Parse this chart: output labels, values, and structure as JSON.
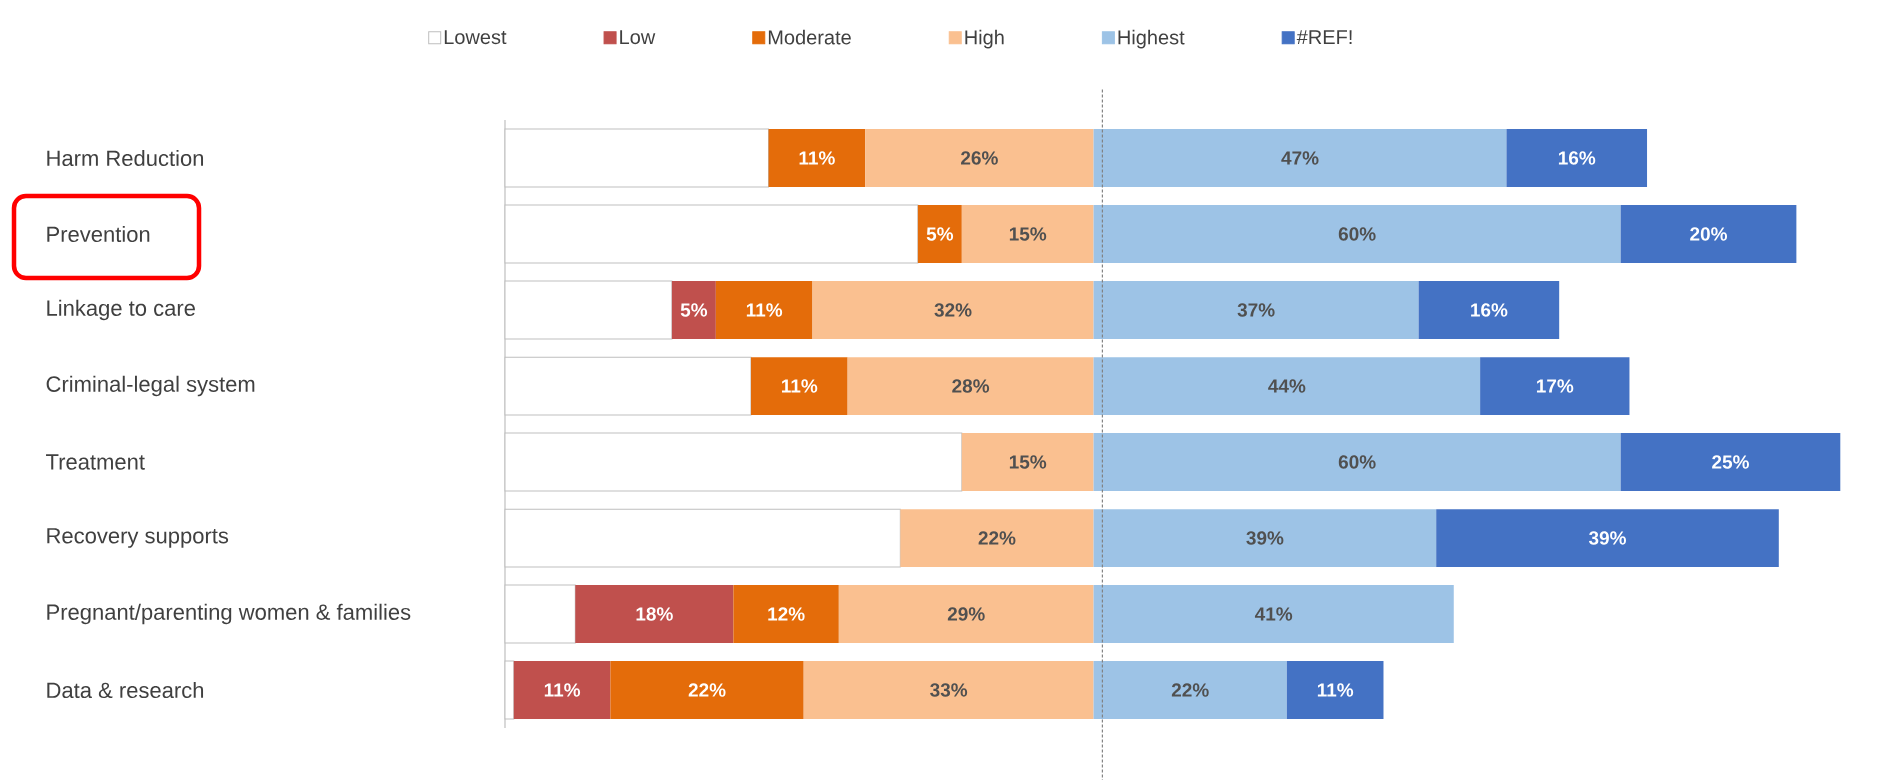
{
  "chart_data": {
    "type": "bar",
    "orientation": "horizontal",
    "stacked": true,
    "categories": [
      "Harm Reduction",
      "Prevention",
      "Linkage to care",
      "Criminal-legal system",
      "Treatment",
      "Recovery supports",
      "Pregnant/parenting women & families",
      "Data & research"
    ],
    "series": [
      {
        "name": "Lowest",
        "color": "#ffffff",
        "values": [
          30,
          47,
          19,
          28,
          52,
          45,
          8,
          1
        ]
      },
      {
        "name": "Low",
        "color": "#c0504d",
        "values": [
          null,
          null,
          5,
          null,
          null,
          null,
          18,
          11
        ],
        "value_labels": [
          null,
          null,
          "5%",
          null,
          null,
          null,
          "18%",
          "11%"
        ]
      },
      {
        "name": "Moderate",
        "color": "#e46c0a",
        "values": [
          11,
          5,
          11,
          11,
          null,
          null,
          12,
          22
        ],
        "value_labels": [
          "11%",
          "5%",
          "11%",
          "11%",
          null,
          null,
          "12%",
          "22%"
        ]
      },
      {
        "name": "High",
        "color": "#fac090",
        "values": [
          26,
          15,
          32,
          28,
          15,
          22,
          29,
          33
        ],
        "value_labels": [
          "26%",
          "15%",
          "32%",
          "28%",
          "15%",
          "22%",
          "29%",
          "33%"
        ]
      },
      {
        "name": "Highest",
        "color": "#9dc3e6",
        "values": [
          47,
          60,
          37,
          44,
          60,
          39,
          41,
          22
        ],
        "value_labels": [
          "47%",
          "60%",
          "37%",
          "44%",
          "60%",
          "39%",
          "41%",
          "22%"
        ]
      },
      {
        "name": "#REF!",
        "color": "#4472c4",
        "values": [
          16,
          20,
          16,
          17,
          25,
          39,
          null,
          11
        ],
        "value_labels": [
          "16%",
          "20%",
          "16%",
          "17%",
          "25%",
          "39%",
          null,
          "11%"
        ]
      }
    ],
    "ref_lines": [
      {
        "axis": "x",
        "value": 68,
        "color": "#808080",
        "line_style": "dashed"
      }
    ],
    "legend": "top",
    "tick_labels": "y",
    "grid": false
  }
}
